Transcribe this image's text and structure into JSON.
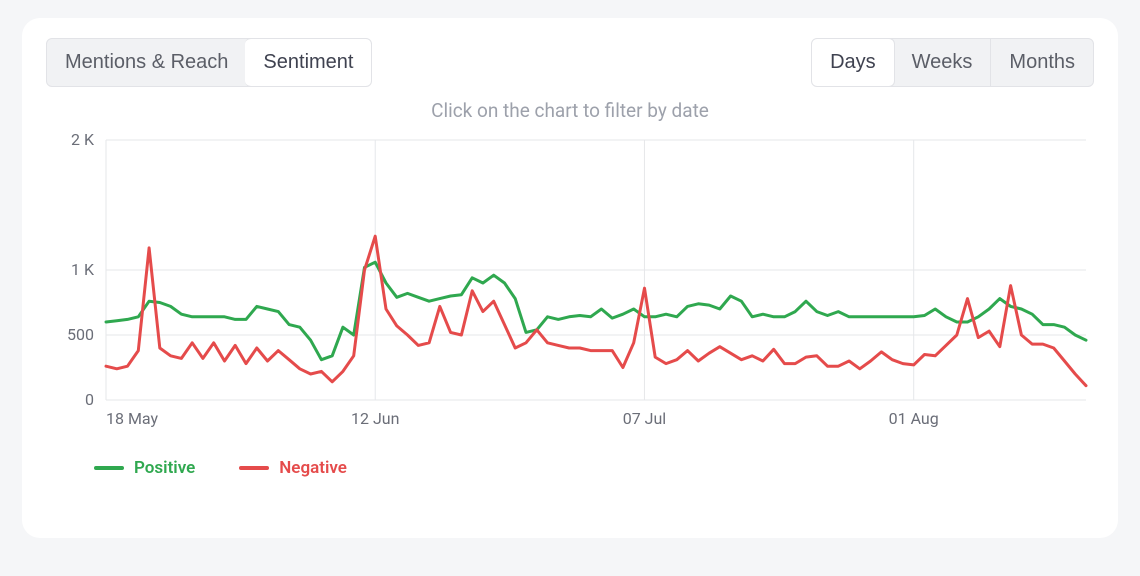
{
  "tabs_left": {
    "items": [
      {
        "label": "Mentions & Reach",
        "active": false
      },
      {
        "label": "Sentiment",
        "active": true
      }
    ]
  },
  "tabs_right": {
    "items": [
      {
        "label": "Days",
        "active": true
      },
      {
        "label": "Weeks",
        "active": false
      },
      {
        "label": "Months",
        "active": false
      }
    ]
  },
  "hint_text": "Click on the chart to filter by date",
  "chart": {
    "type": "line",
    "background_color": "#ffffff",
    "grid_color": "#e6e7ea",
    "axis_label_color": "#6b6e78",
    "axis_label_fontsize": 16,
    "y": {
      "min": 0,
      "max": 2000,
      "ticks": [
        0,
        500,
        1000,
        2000
      ],
      "tick_labels": [
        "0",
        "500",
        "1 K",
        "2 K"
      ]
    },
    "x": {
      "n_points": 92,
      "major_tick_indices": [
        0,
        25,
        50,
        75
      ],
      "major_tick_labels": [
        "18 May",
        "12 Jun",
        "07 Jul",
        "01 Aug"
      ]
    },
    "line_width": 3,
    "series": [
      {
        "name": "Positive",
        "color": "#2fa84f",
        "values": [
          600,
          610,
          620,
          640,
          760,
          750,
          720,
          660,
          640,
          640,
          640,
          640,
          620,
          620,
          720,
          700,
          680,
          580,
          560,
          460,
          310,
          340,
          560,
          500,
          1020,
          1060,
          900,
          790,
          820,
          790,
          760,
          780,
          800,
          810,
          940,
          900,
          960,
          900,
          780,
          520,
          540,
          640,
          620,
          640,
          650,
          640,
          700,
          630,
          660,
          700,
          640,
          640,
          660,
          640,
          720,
          740,
          730,
          700,
          800,
          760,
          640,
          660,
          640,
          640,
          680,
          760,
          680,
          650,
          680,
          640,
          640,
          640,
          640,
          640,
          640,
          640,
          650,
          700,
          640,
          600,
          600,
          640,
          700,
          780,
          720,
          700,
          660,
          580,
          580,
          560,
          500,
          460
        ]
      },
      {
        "name": "Negative",
        "color": "#e54b4b",
        "values": [
          260,
          240,
          260,
          380,
          1170,
          400,
          340,
          320,
          440,
          320,
          440,
          300,
          420,
          280,
          400,
          300,
          380,
          310,
          240,
          200,
          220,
          140,
          220,
          340,
          1000,
          1260,
          700,
          570,
          500,
          420,
          440,
          720,
          520,
          500,
          840,
          680,
          760,
          580,
          400,
          440,
          540,
          440,
          420,
          400,
          400,
          380,
          380,
          380,
          250,
          440,
          860,
          330,
          280,
          310,
          380,
          300,
          360,
          410,
          360,
          310,
          340,
          300,
          390,
          280,
          280,
          330,
          340,
          260,
          260,
          300,
          240,
          300,
          370,
          310,
          280,
          270,
          350,
          340,
          420,
          500,
          780,
          480,
          530,
          410,
          880,
          500,
          430,
          430,
          400,
          300,
          200,
          110
        ]
      }
    ]
  },
  "legend": {
    "items": [
      {
        "label": "Positive",
        "color": "#2fa84f"
      },
      {
        "label": "Negative",
        "color": "#e54b4b"
      }
    ]
  },
  "colors": {
    "page_bg": "#f5f6f8",
    "card_bg": "#ffffff",
    "tab_group_bg": "#f1f2f4",
    "tab_border": "#e2e3e7",
    "tab_text": "#5b5e67",
    "hint_text": "#9da1ab"
  }
}
